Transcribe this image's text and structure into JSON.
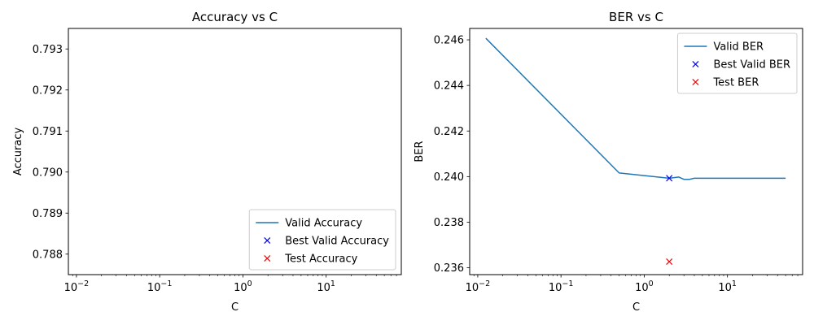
{
  "chart_data": [
    {
      "type": "line",
      "title": "Accuracy vs C",
      "xlabel": "C",
      "ylabel": "Accuracy",
      "xscale": "log",
      "xlim": [
        0.008,
        80
      ],
      "ylim": [
        0.7875,
        0.7935
      ],
      "xticks": [
        {
          "value": 0.01,
          "base": "10",
          "exp": "−2"
        },
        {
          "value": 0.1,
          "base": "10",
          "exp": "−1"
        },
        {
          "value": 1,
          "base": "10",
          "exp": "0"
        },
        {
          "value": 10,
          "base": "10",
          "exp": "1"
        }
      ],
      "yticks": [
        {
          "value": 0.788,
          "label": "0.788"
        },
        {
          "value": 0.789,
          "label": "0.789"
        },
        {
          "value": 0.79,
          "label": "0.790"
        },
        {
          "value": 0.791,
          "label": "0.791"
        },
        {
          "value": 0.792,
          "label": "0.792"
        },
        {
          "value": 0.793,
          "label": "0.793"
        }
      ],
      "grid": false,
      "legend_position": "lower-right",
      "series": [
        {
          "name": "Valid Accuracy",
          "kind": "line",
          "color": "#1f77b4",
          "points": []
        },
        {
          "name": "Best Valid Accuracy",
          "kind": "marker",
          "color": "#0000ff",
          "points": []
        },
        {
          "name": "Test Accuracy",
          "kind": "marker",
          "color": "#ff0000",
          "points": []
        }
      ]
    },
    {
      "type": "line",
      "title": "BER vs C",
      "xlabel": "C",
      "ylabel": "BER",
      "xscale": "log",
      "xlim": [
        0.008,
        80
      ],
      "ylim": [
        0.2357,
        0.2465
      ],
      "xticks": [
        {
          "value": 0.01,
          "base": "10",
          "exp": "−2"
        },
        {
          "value": 0.1,
          "base": "10",
          "exp": "−1"
        },
        {
          "value": 1,
          "base": "10",
          "exp": "0"
        },
        {
          "value": 10,
          "base": "10",
          "exp": "1"
        }
      ],
      "yticks": [
        {
          "value": 0.236,
          "label": "0.236"
        },
        {
          "value": 0.238,
          "label": "0.238"
        },
        {
          "value": 0.24,
          "label": "0.240"
        },
        {
          "value": 0.242,
          "label": "0.242"
        },
        {
          "value": 0.244,
          "label": "0.244"
        },
        {
          "value": 0.246,
          "label": "0.246"
        }
      ],
      "grid": false,
      "legend_position": "upper-right",
      "series": [
        {
          "name": "Valid BER",
          "kind": "line",
          "color": "#1f77b4",
          "points": [
            [
              0.0125,
              0.24607
            ],
            [
              0.5,
              0.24016
            ],
            [
              2.0,
              0.23993
            ],
            [
              2.6,
              0.23998
            ],
            [
              3.0,
              0.23988
            ],
            [
              3.5,
              0.23988
            ],
            [
              4.0,
              0.23993
            ],
            [
              50,
              0.23993
            ]
          ]
        },
        {
          "name": "Best Valid BER",
          "kind": "marker",
          "color": "#0000ff",
          "points": [
            [
              2.0,
              0.23993
            ]
          ]
        },
        {
          "name": "Test BER",
          "kind": "marker",
          "color": "#ff0000",
          "points": [
            [
              2.0,
              0.23627
            ]
          ]
        }
      ]
    }
  ]
}
